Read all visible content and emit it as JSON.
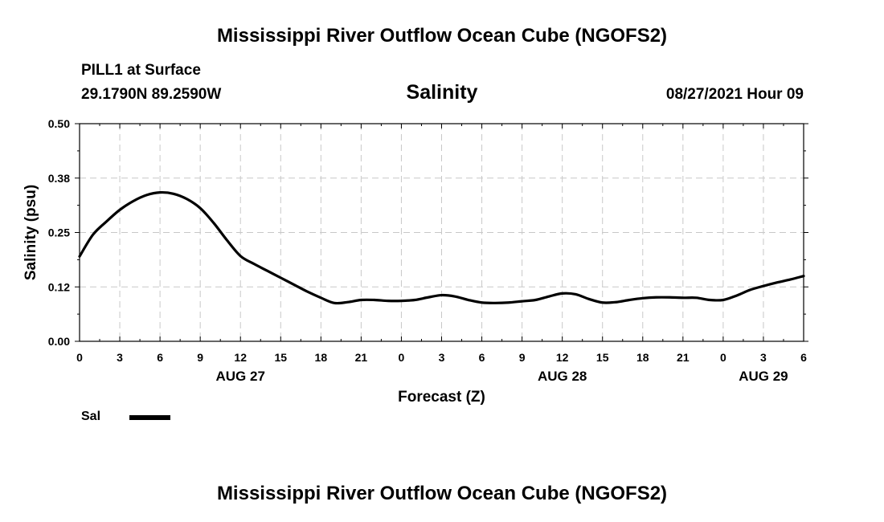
{
  "header": {
    "title": "Mississippi River Outflow Ocean Cube (NGOFS2)",
    "station": "PILL1 at Surface",
    "coords": "29.1790N  89.2590W",
    "subtitle": "Salinity",
    "datetime": "08/27/2021 Hour 09"
  },
  "footer": {
    "title": "Mississippi River Outflow Ocean Cube (NGOFS2)"
  },
  "legend": {
    "label": "Sal",
    "color": "#000000"
  },
  "chart_data": {
    "type": "line",
    "title": "Salinity",
    "xlabel": "Forecast (Z)",
    "ylabel": "Salinity (psu)",
    "xlim": [
      0,
      54
    ],
    "ylim": [
      0.0,
      0.5
    ],
    "grid": true,
    "x_unit": "hours since Aug 27 00Z",
    "x_ticks": [
      {
        "x": 0,
        "label": "0"
      },
      {
        "x": 3,
        "label": "3"
      },
      {
        "x": 6,
        "label": "6"
      },
      {
        "x": 9,
        "label": "9"
      },
      {
        "x": 12,
        "label": "12"
      },
      {
        "x": 15,
        "label": "15"
      },
      {
        "x": 18,
        "label": "18"
      },
      {
        "x": 21,
        "label": "21"
      },
      {
        "x": 24,
        "label": "0"
      },
      {
        "x": 27,
        "label": "3"
      },
      {
        "x": 30,
        "label": "6"
      },
      {
        "x": 33,
        "label": "9"
      },
      {
        "x": 36,
        "label": "12"
      },
      {
        "x": 39,
        "label": "15"
      },
      {
        "x": 42,
        "label": "18"
      },
      {
        "x": 45,
        "label": "21"
      },
      {
        "x": 48,
        "label": "0"
      },
      {
        "x": 51,
        "label": "3"
      },
      {
        "x": 54,
        "label": "6"
      }
    ],
    "date_labels": [
      {
        "x": 12,
        "label": "AUG 27"
      },
      {
        "x": 36,
        "label": "AUG 28"
      },
      {
        "x": 51,
        "label": "AUG 29"
      }
    ],
    "y_ticks": [
      {
        "y": 0.0,
        "label": "0.00"
      },
      {
        "y": 0.125,
        "label": "0.12"
      },
      {
        "y": 0.25,
        "label": "0.25"
      },
      {
        "y": 0.375,
        "label": "0.38"
      },
      {
        "y": 0.5,
        "label": "0.50"
      }
    ],
    "series": [
      {
        "name": "Sal",
        "x": [
          0,
          1,
          2,
          3,
          4,
          5,
          6,
          7,
          8,
          9,
          10,
          11,
          12,
          13,
          14,
          15,
          16,
          17,
          18,
          19,
          20,
          21,
          22,
          23,
          24,
          25,
          26,
          27,
          28,
          29,
          30,
          31,
          32,
          33,
          34,
          35,
          36,
          37,
          38,
          39,
          40,
          41,
          42,
          43,
          44,
          45,
          46,
          47,
          48,
          49,
          50,
          51,
          52,
          53,
          54
        ],
        "values": [
          0.195,
          0.245,
          0.275,
          0.302,
          0.322,
          0.336,
          0.342,
          0.339,
          0.327,
          0.306,
          0.272,
          0.232,
          0.196,
          0.178,
          0.162,
          0.146,
          0.13,
          0.114,
          0.1,
          0.088,
          0.09,
          0.095,
          0.095,
          0.093,
          0.093,
          0.095,
          0.101,
          0.106,
          0.103,
          0.095,
          0.089,
          0.088,
          0.089,
          0.092,
          0.095,
          0.103,
          0.11,
          0.108,
          0.097,
          0.089,
          0.09,
          0.095,
          0.099,
          0.101,
          0.101,
          0.1,
          0.1,
          0.095,
          0.095,
          0.105,
          0.118,
          0.127,
          0.135,
          0.142,
          0.15
        ]
      }
    ]
  }
}
